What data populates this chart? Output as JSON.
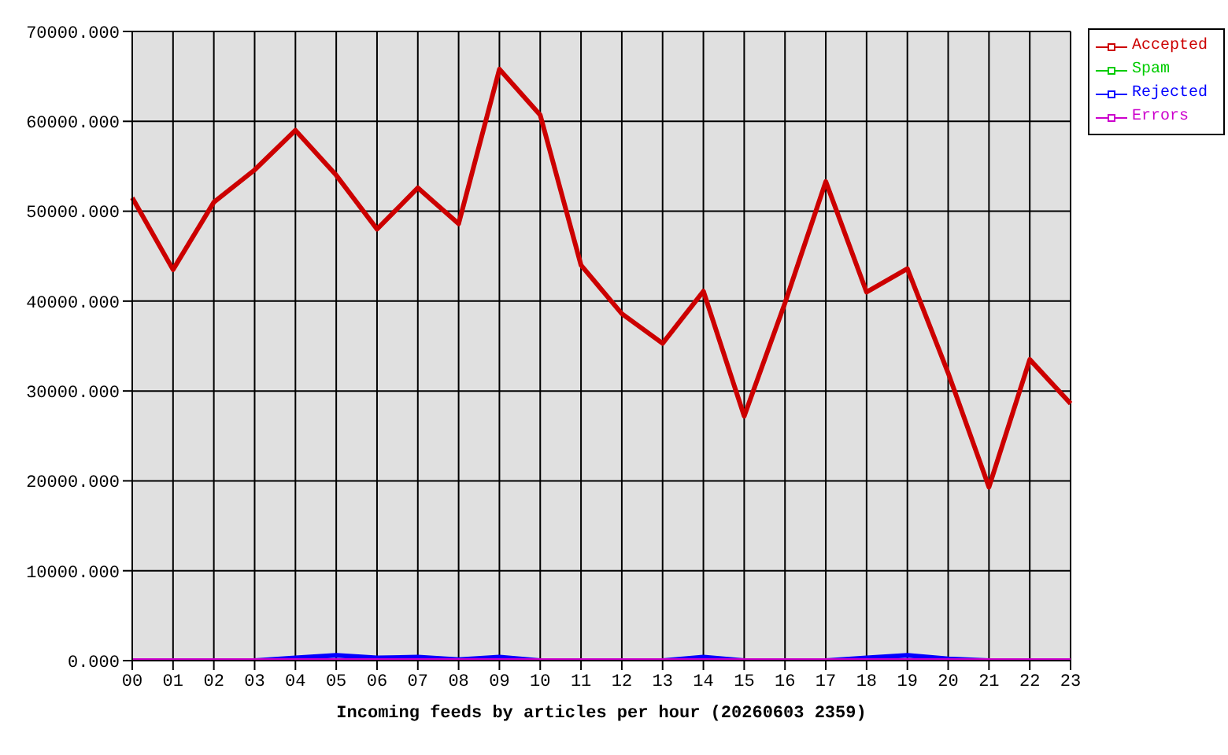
{
  "chart_data": {
    "type": "line",
    "xlabel": "Incoming feeds by articles per hour (20260603 2359)",
    "categories": [
      "00",
      "01",
      "02",
      "03",
      "04",
      "05",
      "06",
      "07",
      "08",
      "09",
      "10",
      "11",
      "12",
      "13",
      "14",
      "15",
      "16",
      "17",
      "18",
      "19",
      "20",
      "21",
      "22",
      "23"
    ],
    "series": [
      {
        "name": "Accepted",
        "color": "#cc0000",
        "values": [
          51500,
          43500,
          51000,
          54600,
          59000,
          54000,
          48000,
          52600,
          48600,
          65800,
          60700,
          44000,
          38600,
          35300,
          41100,
          27200,
          39800,
          53300,
          41000,
          43600,
          32000,
          19300,
          33500,
          28600
        ]
      },
      {
        "name": "Spam",
        "color": "#00cc00",
        "values": [
          null,
          null,
          null,
          null,
          null,
          null,
          null,
          null,
          null,
          null,
          null,
          null,
          null,
          null,
          null,
          null,
          null,
          null,
          null,
          null,
          null,
          null,
          null,
          null
        ]
      },
      {
        "name": "Rejected",
        "color": "#0000ff",
        "values": [
          null,
          null,
          null,
          0,
          300,
          600,
          300,
          400,
          100,
          400,
          0,
          null,
          null,
          0,
          400,
          0,
          null,
          0,
          300,
          600,
          200,
          0,
          null,
          null
        ]
      },
      {
        "name": "Errors",
        "color": "#cc00cc",
        "values": [
          0,
          0,
          0,
          0,
          0,
          0,
          0,
          0,
          0,
          0,
          0,
          0,
          0,
          0,
          0,
          0,
          0,
          0,
          0,
          0,
          0,
          0,
          0,
          0
        ]
      }
    ],
    "ylim": [
      0,
      70000
    ],
    "yticks": [
      {
        "value": 0,
        "label": "0.000"
      },
      {
        "value": 10000,
        "label": "10000.000"
      },
      {
        "value": 20000,
        "label": "20000.000"
      },
      {
        "value": 30000,
        "label": "30000.000"
      },
      {
        "value": 40000,
        "label": "40000.000"
      },
      {
        "value": 50000,
        "label": "50000.000"
      },
      {
        "value": 60000,
        "label": "60000.000"
      },
      {
        "value": 70000,
        "label": "70000.000"
      }
    ],
    "grid": true,
    "legend": "top right",
    "marker": "none",
    "line_style": "solid"
  }
}
